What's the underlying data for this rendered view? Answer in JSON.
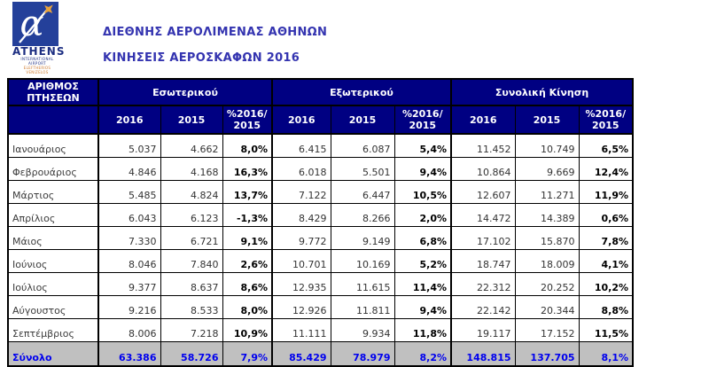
{
  "logo": {
    "brand": "ATHENS",
    "subtitle1": "INTERNATIONAL AIRPORT",
    "subtitle2": "ELEFTHERIOS VENIZELOS",
    "icon": "alpha-airplane-icon",
    "colors": {
      "square": "#24409a",
      "plane": "#e8a33d",
      "trail": "#ffffff"
    }
  },
  "titles": {
    "line1": "ΔΙΕΘΝΗΣ ΑΕΡΟΛΙΜΕΝΑΣ ΑΘΗΝΩΝ",
    "line2": "ΚΙΝΗΣΕΙΣ ΑΕΡΟΣΚΑΦΩΝ 2016"
  },
  "colors": {
    "header_bg": "#000082",
    "header_text": "#ffffff",
    "title_text": "#3434b0",
    "total_bg": "#c0c0c0",
    "total_text": "#0000ee",
    "border": "#000000"
  },
  "table": {
    "corner_header": "ΑΡΙΘΜΟΣ\nΠΤΗΣΕΩΝ",
    "groups": [
      {
        "label": "Εσωτερικού"
      },
      {
        "label": "Εξωτερικού"
      },
      {
        "label": "Συνολική Κίνηση"
      }
    ],
    "sub_headers": [
      "2016",
      "2015",
      "%2016/\n2015"
    ],
    "rows": [
      {
        "month": "Ιανουάριος",
        "cells": [
          "5.037",
          "4.662",
          "8,0%",
          "6.415",
          "6.087",
          "5,4%",
          "11.452",
          "10.749",
          "6,5%"
        ]
      },
      {
        "month": "Φεβρουάριος",
        "cells": [
          "4.846",
          "4.168",
          "16,3%",
          "6.018",
          "5.501",
          "9,4%",
          "10.864",
          "9.669",
          "12,4%"
        ]
      },
      {
        "month": "Μάρτιος",
        "cells": [
          "5.485",
          "4.824",
          "13,7%",
          "7.122",
          "6.447",
          "10,5%",
          "12.607",
          "11.271",
          "11,9%"
        ]
      },
      {
        "month": "Απρίλιος",
        "cells": [
          "6.043",
          "6.123",
          "-1,3%",
          "8.429",
          "8.266",
          "2,0%",
          "14.472",
          "14.389",
          "0,6%"
        ]
      },
      {
        "month": "Μάιος",
        "cells": [
          "7.330",
          "6.721",
          "9,1%",
          "9.772",
          "9.149",
          "6,8%",
          "17.102",
          "15.870",
          "7,8%"
        ]
      },
      {
        "month": "Ιούνιος",
        "cells": [
          "8.046",
          "7.840",
          "2,6%",
          "10.701",
          "10.169",
          "5,2%",
          "18.747",
          "18.009",
          "4,1%"
        ]
      },
      {
        "month": "Ιούλιος",
        "cells": [
          "9.377",
          "8.637",
          "8,6%",
          "12.935",
          "11.615",
          "11,4%",
          "22.312",
          "20.252",
          "10,2%"
        ]
      },
      {
        "month": "Αύγουστος",
        "cells": [
          "9.216",
          "8.533",
          "8,0%",
          "12.926",
          "11.811",
          "9,4%",
          "22.142",
          "20.344",
          "8,8%"
        ]
      },
      {
        "month": "Σεπτέμβριος",
        "cells": [
          "8.006",
          "7.218",
          "10,9%",
          "11.111",
          "9.934",
          "11,8%",
          "19.117",
          "17.152",
          "11,5%"
        ]
      }
    ],
    "total": {
      "label": "Σύνολο",
      "cells": [
        "63.386",
        "58.726",
        "7,9%",
        "85.429",
        "78.979",
        "8,2%",
        "148.815",
        "137.705",
        "8,1%"
      ]
    }
  }
}
